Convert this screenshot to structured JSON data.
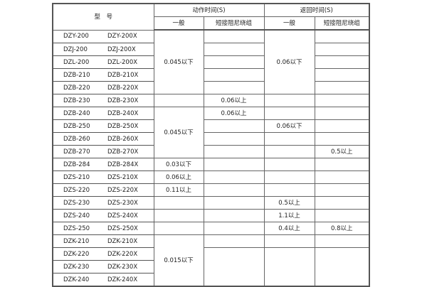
{
  "header": {
    "model": "型　号",
    "action_time": "动作时间(S)",
    "return_time": "返回时间(S)",
    "general": "一般",
    "short_winding": "短接阻尼绕组"
  },
  "rows": [
    {
      "model": [
        "DZY-200",
        "DZY-200X"
      ]
    },
    {
      "model": [
        "DZJ-200",
        "DZJ-200X"
      ]
    },
    {
      "model": [
        "DZL-200",
        "DZL-200X"
      ]
    },
    {
      "model": [
        "DZB-210",
        "DZB-210X"
      ]
    },
    {
      "model": [
        "DZB-220",
        "DZB-220X"
      ]
    },
    {
      "model": [
        "DZB-230",
        "DZB-230X"
      ]
    },
    {
      "model": [
        "DZB-240",
        "DZB-240X"
      ]
    },
    {
      "model": [
        "DZB-250",
        "DZB-250X"
      ]
    },
    {
      "model": [
        "DZB-260",
        "DZB-260X"
      ]
    },
    {
      "model": [
        "DZB-270",
        "DZB-270X"
      ]
    },
    {
      "model": [
        "DZB-284",
        "DZB-284X"
      ]
    },
    {
      "model": [
        "DZS-210",
        "DZS-210X"
      ]
    },
    {
      "model": [
        "DZS-220",
        "DZS-220X"
      ]
    },
    {
      "model": [
        "DZS-230",
        "DZS-230X"
      ]
    },
    {
      "model": [
        "DZS-240",
        "DZS-240X"
      ]
    },
    {
      "model": [
        "DZS-250",
        "DZS-250X"
      ]
    },
    {
      "model": [
        "DZK-210",
        "DZK-210X"
      ]
    },
    {
      "model": [
        "DZK-220",
        "DZK-220X"
      ]
    },
    {
      "model": [
        "DZK-230",
        "DZK-230X"
      ]
    },
    {
      "model": [
        "DZK-240",
        "DZK-240X"
      ]
    }
  ],
  "columns": [
    [
      {
        "start": 0,
        "span": 5,
        "text": "0.045以下"
      },
      {
        "start": 5,
        "span": 1,
        "text": ""
      },
      {
        "start": 6,
        "span": 4,
        "text": "0.045以下"
      },
      {
        "start": 10,
        "span": 1,
        "text": "0.03以下"
      },
      {
        "start": 11,
        "span": 1,
        "text": "0.06以上"
      },
      {
        "start": 12,
        "span": 1,
        "text": "0.11以上"
      },
      {
        "start": 13,
        "span": 1,
        "text": ""
      },
      {
        "start": 14,
        "span": 1,
        "text": ""
      },
      {
        "start": 15,
        "span": 1,
        "text": ""
      },
      {
        "start": 16,
        "span": 4,
        "text": "0.015以下"
      }
    ],
    [
      {
        "start": 0,
        "span": 1,
        "text": ""
      },
      {
        "start": 1,
        "span": 1,
        "text": ""
      },
      {
        "start": 2,
        "span": 1,
        "text": ""
      },
      {
        "start": 3,
        "span": 1,
        "text": ""
      },
      {
        "start": 4,
        "span": 1,
        "text": ""
      },
      {
        "start": 5,
        "span": 1,
        "text": "0.06以上"
      },
      {
        "start": 6,
        "span": 1,
        "text": "0.06以上"
      },
      {
        "start": 7,
        "span": 1,
        "text": ""
      },
      {
        "start": 8,
        "span": 1,
        "text": ""
      },
      {
        "start": 9,
        "span": 1,
        "text": ""
      },
      {
        "start": 10,
        "span": 1,
        "text": ""
      },
      {
        "start": 11,
        "span": 1,
        "text": ""
      },
      {
        "start": 12,
        "span": 1,
        "text": ""
      },
      {
        "start": 13,
        "span": 1,
        "text": ""
      },
      {
        "start": 14,
        "span": 1,
        "text": ""
      },
      {
        "start": 15,
        "span": 1,
        "text": ""
      },
      {
        "start": 16,
        "span": 1,
        "text": ""
      },
      {
        "start": 17,
        "span": 3,
        "text": ""
      }
    ],
    [
      {
        "start": 0,
        "span": 5,
        "text": "0.06以下"
      },
      {
        "start": 5,
        "span": 1,
        "text": ""
      },
      {
        "start": 6,
        "span": 1,
        "text": ""
      },
      {
        "start": 7,
        "span": 1,
        "text": "0.06以下"
      },
      {
        "start": 8,
        "span": 1,
        "text": ""
      },
      {
        "start": 9,
        "span": 1,
        "text": ""
      },
      {
        "start": 10,
        "span": 1,
        "text": ""
      },
      {
        "start": 11,
        "span": 1,
        "text": ""
      },
      {
        "start": 12,
        "span": 1,
        "text": ""
      },
      {
        "start": 13,
        "span": 1,
        "text": "0.5以上"
      },
      {
        "start": 14,
        "span": 1,
        "text": "1.1以上"
      },
      {
        "start": 15,
        "span": 1,
        "text": "0.4以上"
      },
      {
        "start": 16,
        "span": 1,
        "text": ""
      },
      {
        "start": 17,
        "span": 3,
        "text": ""
      }
    ],
    [
      {
        "start": 0,
        "span": 1,
        "text": ""
      },
      {
        "start": 1,
        "span": 1,
        "text": ""
      },
      {
        "start": 2,
        "span": 1,
        "text": ""
      },
      {
        "start": 3,
        "span": 1,
        "text": ""
      },
      {
        "start": 4,
        "span": 1,
        "text": ""
      },
      {
        "start": 5,
        "span": 1,
        "text": ""
      },
      {
        "start": 6,
        "span": 1,
        "text": ""
      },
      {
        "start": 7,
        "span": 1,
        "text": ""
      },
      {
        "start": 8,
        "span": 1,
        "text": ""
      },
      {
        "start": 9,
        "span": 1,
        "text": "0.5以上"
      },
      {
        "start": 10,
        "span": 1,
        "text": ""
      },
      {
        "start": 11,
        "span": 1,
        "text": ""
      },
      {
        "start": 12,
        "span": 1,
        "text": ""
      },
      {
        "start": 13,
        "span": 1,
        "text": ""
      },
      {
        "start": 14,
        "span": 1,
        "text": ""
      },
      {
        "start": 15,
        "span": 1,
        "text": "0.8以上"
      },
      {
        "start": 16,
        "span": 1,
        "text": ""
      },
      {
        "start": 17,
        "span": 3,
        "text": ""
      }
    ]
  ]
}
